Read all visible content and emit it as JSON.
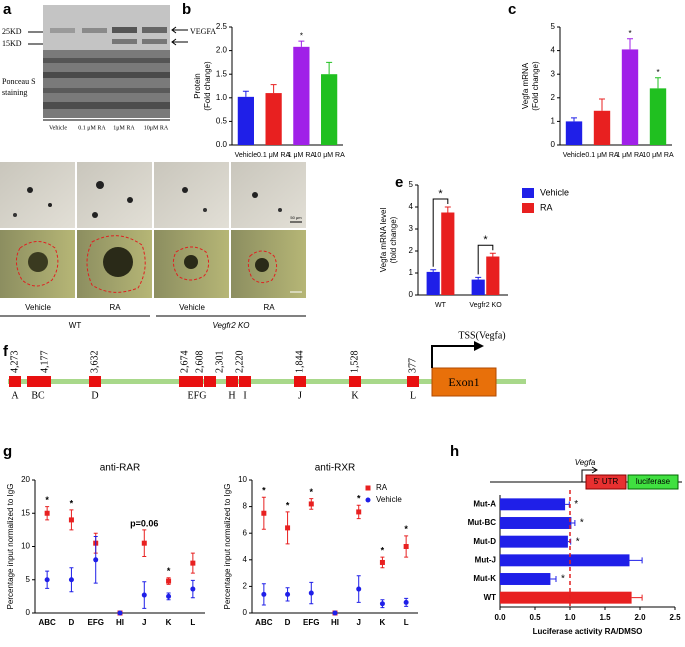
{
  "panel_labels": [
    "a",
    "b",
    "c",
    "d",
    "e",
    "f",
    "g",
    "h"
  ],
  "blot": {
    "markers": [
      "25KD",
      "15KD"
    ],
    "target": "VEGFA",
    "stain": [
      "Ponceau S",
      "staining"
    ],
    "lanes": [
      "Vehicle",
      "0.1 μM RA",
      "1μM RA",
      "10μM RA"
    ]
  },
  "micrographs": {
    "columns": [
      "Vehicle",
      "RA",
      "Vehicle",
      "RA"
    ],
    "groups": [
      "WT",
      "Vegfr2 KO"
    ],
    "scale": "50 μm"
  },
  "promoter": {
    "distances": [
      "4,273",
      "4,177",
      "3,632",
      "2,674",
      "2,608",
      "2,301",
      "2,220",
      "1,844",
      "1,528",
      "377"
    ],
    "site_labels": [
      "A",
      "BC",
      "D",
      "EFG",
      "H",
      "I",
      "J",
      "K",
      "L"
    ],
    "tss": "TSS(Vegfa)",
    "exon": "Exon1"
  },
  "chart_data": [
    {
      "type": "bar",
      "y_label": [
        "Protein",
        "(Fold change)"
      ],
      "categories": [
        "Vehicle",
        "0.1 μM RA",
        "1 μM RA",
        "10 μM RA"
      ],
      "values": [
        1.02,
        1.1,
        2.08,
        1.5
      ],
      "errors": [
        0.12,
        0.18,
        0.12,
        0.25
      ],
      "colors": [
        "#1f1fe8",
        "#e82020",
        "#a020e8",
        "#20c020"
      ],
      "significance": [
        null,
        null,
        "*",
        null
      ],
      "ylim": [
        0,
        2.5
      ],
      "yticks": [
        {
          "value": 0,
          "label": "0.0"
        },
        {
          "value": 0.5,
          "label": "0.5"
        },
        {
          "value": 1,
          "label": "1.0"
        },
        {
          "value": 1.5,
          "label": "1.5"
        },
        {
          "value": 2,
          "label": "2.0"
        },
        {
          "value": 2.5,
          "label": "2.5"
        }
      ]
    },
    {
      "type": "bar",
      "y_label": [
        "Vegfa mRNA",
        "(Fold change)"
      ],
      "categories": [
        "Vehicle",
        "0.1 μM RA",
        "1 μM RA",
        "10 μM RA"
      ],
      "values": [
        1.0,
        1.45,
        4.05,
        2.4
      ],
      "errors": [
        0.15,
        0.5,
        0.45,
        0.45
      ],
      "colors": [
        "#1f1fe8",
        "#e82020",
        "#a020e8",
        "#20c020"
      ],
      "significance": [
        null,
        null,
        "*",
        "*"
      ],
      "ylim": [
        0,
        5
      ],
      "yticks": [
        0,
        1,
        2,
        3,
        4,
        5
      ]
    },
    {
      "type": "bar",
      "y_label": [
        "Vegfa mRNA level",
        "(fold change)"
      ],
      "categories": [
        "WT",
        "Vegfr2 KO"
      ],
      "series": [
        {
          "name": "Vehicle",
          "color": "#1f1fe8",
          "values": [
            1.05,
            0.7
          ],
          "errors": [
            0.1,
            0.1
          ]
        },
        {
          "name": "RA",
          "color": "#e82020",
          "values": [
            3.75,
            1.75
          ],
          "errors": [
            0.25,
            0.15
          ]
        }
      ],
      "significance": [
        "*",
        "*"
      ],
      "legend": "right",
      "ylim": [
        0,
        5
      ],
      "yticks": [
        0,
        1,
        2,
        3,
        4,
        5
      ]
    },
    {
      "type": "dot",
      "title": "anti-RAR",
      "y_label": [
        "Percentage input normalized to IgG"
      ],
      "categories": [
        "ABC",
        "D",
        "EFG",
        "HI",
        "J",
        "K",
        "L"
      ],
      "series": [
        {
          "color": "#e82020",
          "marker": "square",
          "values": [
            15,
            14,
            10.5,
            0,
            10.5,
            4.8,
            7.5
          ],
          "errors": [
            1,
            1.5,
            1.5,
            0,
            2,
            0.5,
            1.5
          ]
        },
        {
          "color": "#1f1fe8",
          "marker": "circle",
          "values": [
            5,
            5,
            8,
            0,
            2.7,
            2.5,
            3.6
          ],
          "errors": [
            1.3,
            1.8,
            3.5,
            0,
            2,
            0.5,
            1.3
          ]
        }
      ],
      "significance": [
        "*",
        "*",
        null,
        null,
        "p=0.06",
        "*",
        null
      ],
      "ylim": [
        0,
        20
      ],
      "yticks": [
        0,
        5,
        10,
        15,
        20
      ]
    },
    {
      "type": "dot",
      "title": "anti-RXR",
      "y_label": [
        "Percentage input normalized to IgG"
      ],
      "categories": [
        "ABC",
        "D",
        "EFG",
        "HI",
        "J",
        "K",
        "L"
      ],
      "series": [
        {
          "name": "RA",
          "color": "#e82020",
          "marker": "square",
          "values": [
            7.5,
            6.4,
            8.2,
            0,
            7.6,
            3.8,
            5
          ],
          "errors": [
            1.2,
            1.2,
            0.4,
            0,
            0.5,
            0.4,
            0.8
          ]
        },
        {
          "name": "Vehicle",
          "color": "#1f1fe8",
          "marker": "circle",
          "values": [
            1.4,
            1.4,
            1.5,
            0,
            1.8,
            0.7,
            0.8
          ],
          "errors": [
            0.8,
            0.5,
            0.8,
            0,
            1,
            0.3,
            0.3
          ]
        }
      ],
      "significance": [
        "*",
        "*",
        "*",
        null,
        "*",
        "*",
        "*"
      ],
      "legend": "upper right",
      "ylim": [
        0,
        10
      ],
      "yticks": [
        0,
        2,
        4,
        6,
        8,
        10
      ]
    },
    {
      "type": "barh",
      "x_label": "Luciferase activity RA/DMSO",
      "construct": {
        "gene": "Vegfa",
        "utr": "5' UTR",
        "reporter": "luciferase"
      },
      "categories": [
        "Mut-A",
        "Mut-BC",
        "Mut-D",
        "Mut-J",
        "Mut-K",
        "WT"
      ],
      "values": [
        0.93,
        1.02,
        0.97,
        1.85,
        0.72,
        1.88
      ],
      "errors": [
        0.06,
        0.05,
        0.04,
        0.18,
        0.08,
        0.15
      ],
      "colors": [
        "#1f1fe8",
        "#1f1fe8",
        "#1f1fe8",
        "#1f1fe8",
        "#1f1fe8",
        "#e82020"
      ],
      "significance": [
        "*",
        "*",
        "*",
        null,
        "*",
        null
      ],
      "reference_line": 1.0,
      "xlim": [
        0,
        2.5
      ],
      "xticks": [
        {
          "value": 0,
          "label": "0.0"
        },
        {
          "value": 0.5,
          "label": "0.5"
        },
        {
          "value": 1,
          "label": "1.0"
        },
        {
          "value": 1.5,
          "label": "1.5"
        },
        {
          "value": 2,
          "label": "2.0"
        },
        {
          "value": 2.5,
          "label": "2.5"
        }
      ]
    }
  ]
}
